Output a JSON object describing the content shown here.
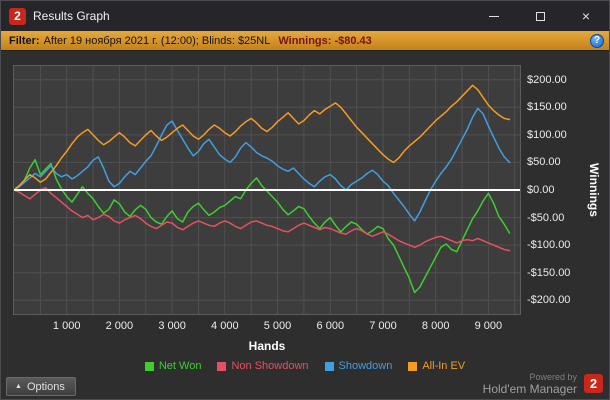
{
  "window": {
    "title": "Results Graph",
    "logo_text": "2",
    "close_icon": "×"
  },
  "filter": {
    "label": "Filter:",
    "criteria": "After 19 ноября 2021 г. (12:00); Blinds: $25NL",
    "winnings": "Winnings: -$80.43",
    "help_icon": "?"
  },
  "footer": {
    "options_label": "Options",
    "options_arrow": "▲",
    "powered_by": "Powered by",
    "brand": "Hold'em Manager",
    "brand_logo": "2"
  },
  "colors": {
    "brand_red": "#c8271c",
    "filter_gold": "#d99b2b",
    "zero_line": "#ffffff",
    "grid": "#515151",
    "plot_background": "#3d3d3d"
  },
  "chart_data": {
    "type": "line",
    "title": "",
    "xlabel": "Hands",
    "ylabel": "Winnings",
    "legend_position": "bottom",
    "grid": true,
    "xlim": [
      0,
      9600
    ],
    "ylim": [
      -225,
      225
    ],
    "x_start": 0,
    "x_step": 100,
    "grid_x_step": 500,
    "grid_y_step": 50,
    "x_ticks": [
      1000,
      2000,
      3000,
      4000,
      5000,
      6000,
      7000,
      8000,
      9000
    ],
    "x_tick_labels": [
      "1 000",
      "2 000",
      "3 000",
      "4 000",
      "5 000",
      "6 000",
      "7 000",
      "8 000",
      "9 000"
    ],
    "y_ticks": [
      200,
      150,
      100,
      50,
      0,
      -50,
      -100,
      -150,
      -200
    ],
    "y_tick_labels": [
      "$200.00",
      "$150.00",
      "$100.00",
      "$50.00",
      "$0.00",
      "-$50.00",
      "-$100.00",
      "-$150.00",
      "-$200.00"
    ],
    "series": [
      {
        "name": "Net Won",
        "color": "#3dcf2e",
        "values": [
          0,
          8,
          18,
          40,
          55,
          28,
          38,
          48,
          20,
          2,
          -12,
          -22,
          -8,
          6,
          -6,
          -16,
          -30,
          -42,
          -35,
          -18,
          -25,
          -40,
          -48,
          -36,
          -28,
          -35,
          -50,
          -58,
          -62,
          -48,
          -38,
          -52,
          -58,
          -40,
          -30,
          -24,
          -36,
          -46,
          -40,
          -32,
          -28,
          -20,
          -12,
          -16,
          0,
          12,
          22,
          8,
          -2,
          -12,
          -22,
          -35,
          -45,
          -38,
          -30,
          -34,
          -48,
          -60,
          -70,
          -58,
          -50,
          -64,
          -76,
          -66,
          -58,
          -62,
          -72,
          -80,
          -74,
          -66,
          -70,
          -88,
          -100,
          -120,
          -140,
          -160,
          -186,
          -176,
          -158,
          -140,
          -122,
          -104,
          -98,
          -108,
          -112,
          -92,
          -72,
          -52,
          -38,
          -20,
          -6,
          -24,
          -48,
          -62,
          -78
        ]
      },
      {
        "name": "Non Showdown",
        "color": "#e65060",
        "values": [
          0,
          -4,
          -10,
          -16,
          -8,
          0,
          4,
          -6,
          -14,
          -22,
          -30,
          -38,
          -44,
          -50,
          -46,
          -54,
          -50,
          -44,
          -48,
          -56,
          -60,
          -54,
          -50,
          -46,
          -52,
          -60,
          -66,
          -70,
          -64,
          -58,
          -60,
          -68,
          -72,
          -66,
          -60,
          -56,
          -60,
          -64,
          -66,
          -60,
          -56,
          -60,
          -66,
          -70,
          -64,
          -58,
          -56,
          -60,
          -64,
          -66,
          -70,
          -74,
          -76,
          -70,
          -64,
          -60,
          -64,
          -68,
          -72,
          -68,
          -70,
          -74,
          -78,
          -80,
          -74,
          -70,
          -74,
          -80,
          -84,
          -80,
          -76,
          -80,
          -86,
          -92,
          -96,
          -100,
          -104,
          -100,
          -94,
          -90,
          -86,
          -84,
          -88,
          -92,
          -96,
          -92,
          -90,
          -92,
          -88,
          -92,
          -96,
          -100,
          -104,
          -108,
          -110
        ]
      },
      {
        "name": "Showdown",
        "color": "#3f9fe0",
        "values": [
          0,
          6,
          14,
          22,
          30,
          24,
          34,
          44,
          30,
          24,
          28,
          20,
          26,
          34,
          42,
          54,
          60,
          40,
          16,
          6,
          12,
          24,
          34,
          28,
          40,
          52,
          62,
          80,
          100,
          118,
          125,
          108,
          92,
          76,
          62,
          70,
          84,
          92,
          78,
          64,
          56,
          50,
          60,
          76,
          86,
          78,
          68,
          62,
          58,
          52,
          44,
          38,
          34,
          40,
          30,
          20,
          12,
          6,
          16,
          24,
          28,
          20,
          8,
          0,
          10,
          16,
          22,
          30,
          36,
          28,
          16,
          8,
          -6,
          -18,
          -30,
          -44,
          -56,
          -40,
          -20,
          0,
          16,
          30,
          42,
          56,
          74,
          92,
          110,
          132,
          148,
          138,
          116,
          96,
          76,
          60,
          50
        ]
      },
      {
        "name": "All-In EV",
        "color": "#f59b22",
        "values": [
          0,
          8,
          18,
          28,
          22,
          14,
          20,
          32,
          44,
          58,
          70,
          84,
          96,
          104,
          110,
          100,
          90,
          82,
          88,
          96,
          104,
          96,
          86,
          80,
          90,
          100,
          108,
          98,
          90,
          96,
          104,
          112,
          118,
          108,
          98,
          92,
          100,
          110,
          118,
          112,
          104,
          98,
          106,
          116,
          124,
          130,
          122,
          112,
          106,
          114,
          124,
          132,
          140,
          130,
          120,
          126,
          136,
          144,
          138,
          146,
          152,
          158,
          150,
          138,
          126,
          114,
          104,
          94,
          84,
          74,
          64,
          56,
          50,
          58,
          70,
          80,
          88,
          96,
          106,
          116,
          126,
          134,
          142,
          152,
          160,
          170,
          180,
          190,
          182,
          168,
          154,
          144,
          136,
          130,
          128
        ]
      }
    ]
  }
}
